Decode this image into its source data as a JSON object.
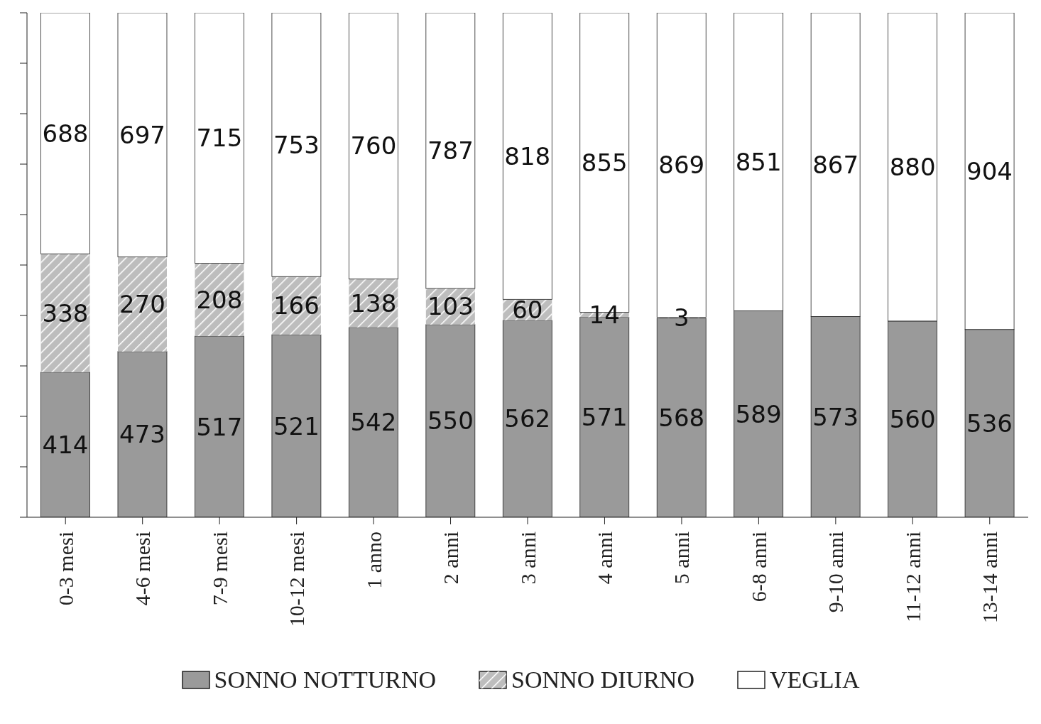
{
  "chart_data": {
    "type": "bar",
    "stacked": true,
    "categories": [
      "0-3 mesi",
      "4-6 mesi",
      "7-9 mesi",
      "10-12 mesi",
      "1 anno",
      "2 anni",
      "3 anni",
      "4 anni",
      "5 anni",
      "6-8 anni",
      "9-10 anni",
      "11-12 anni",
      "13-14 anni"
    ],
    "series": [
      {
        "name": "SONNO NOTTURNO",
        "color": "#9a9a9a",
        "values": [
          414,
          473,
          517,
          521,
          542,
          550,
          562,
          571,
          568,
          589,
          573,
          560,
          536
        ],
        "value_labels": [
          "414",
          "473",
          "517",
          "521",
          "542",
          "550",
          "562",
          "571",
          "568",
          "589",
          "573",
          "560",
          "536"
        ]
      },
      {
        "name": "SONNO DIURNO",
        "color": "#bdbdbd",
        "values": [
          338,
          270,
          208,
          166,
          138,
          103,
          60,
          14,
          3,
          0,
          0,
          0,
          0
        ],
        "value_labels": [
          "338",
          "270",
          "208",
          "166",
          "138",
          "103",
          "60",
          "14",
          "3",
          null,
          null,
          null,
          null
        ]
      },
      {
        "name": "VEGLIA",
        "color": "#ffffff",
        "values": [
          688,
          697,
          715,
          753,
          760,
          787,
          818,
          855,
          869,
          851,
          867,
          880,
          904
        ],
        "value_labels": [
          "688",
          "697",
          "715",
          "753",
          "760",
          "787",
          "818",
          "855",
          "869",
          "851",
          "867",
          "880",
          "904"
        ]
      }
    ],
    "ylim": [
      0,
      1440
    ],
    "yticks": [
      {
        "value": 0,
        "label": null
      },
      {
        "value": 144,
        "label": null
      },
      {
        "value": 288,
        "label": null
      },
      {
        "value": 432,
        "label": null
      },
      {
        "value": 576,
        "label": null
      },
      {
        "value": 720,
        "label": null
      },
      {
        "value": 864,
        "label": null
      },
      {
        "value": 1008,
        "label": null
      },
      {
        "value": 1152,
        "label": null
      },
      {
        "value": 1296,
        "label": null
      },
      {
        "value": 1440,
        "label": null
      }
    ],
    "tick_labels": "x",
    "grid": false,
    "legend": "bottom"
  }
}
